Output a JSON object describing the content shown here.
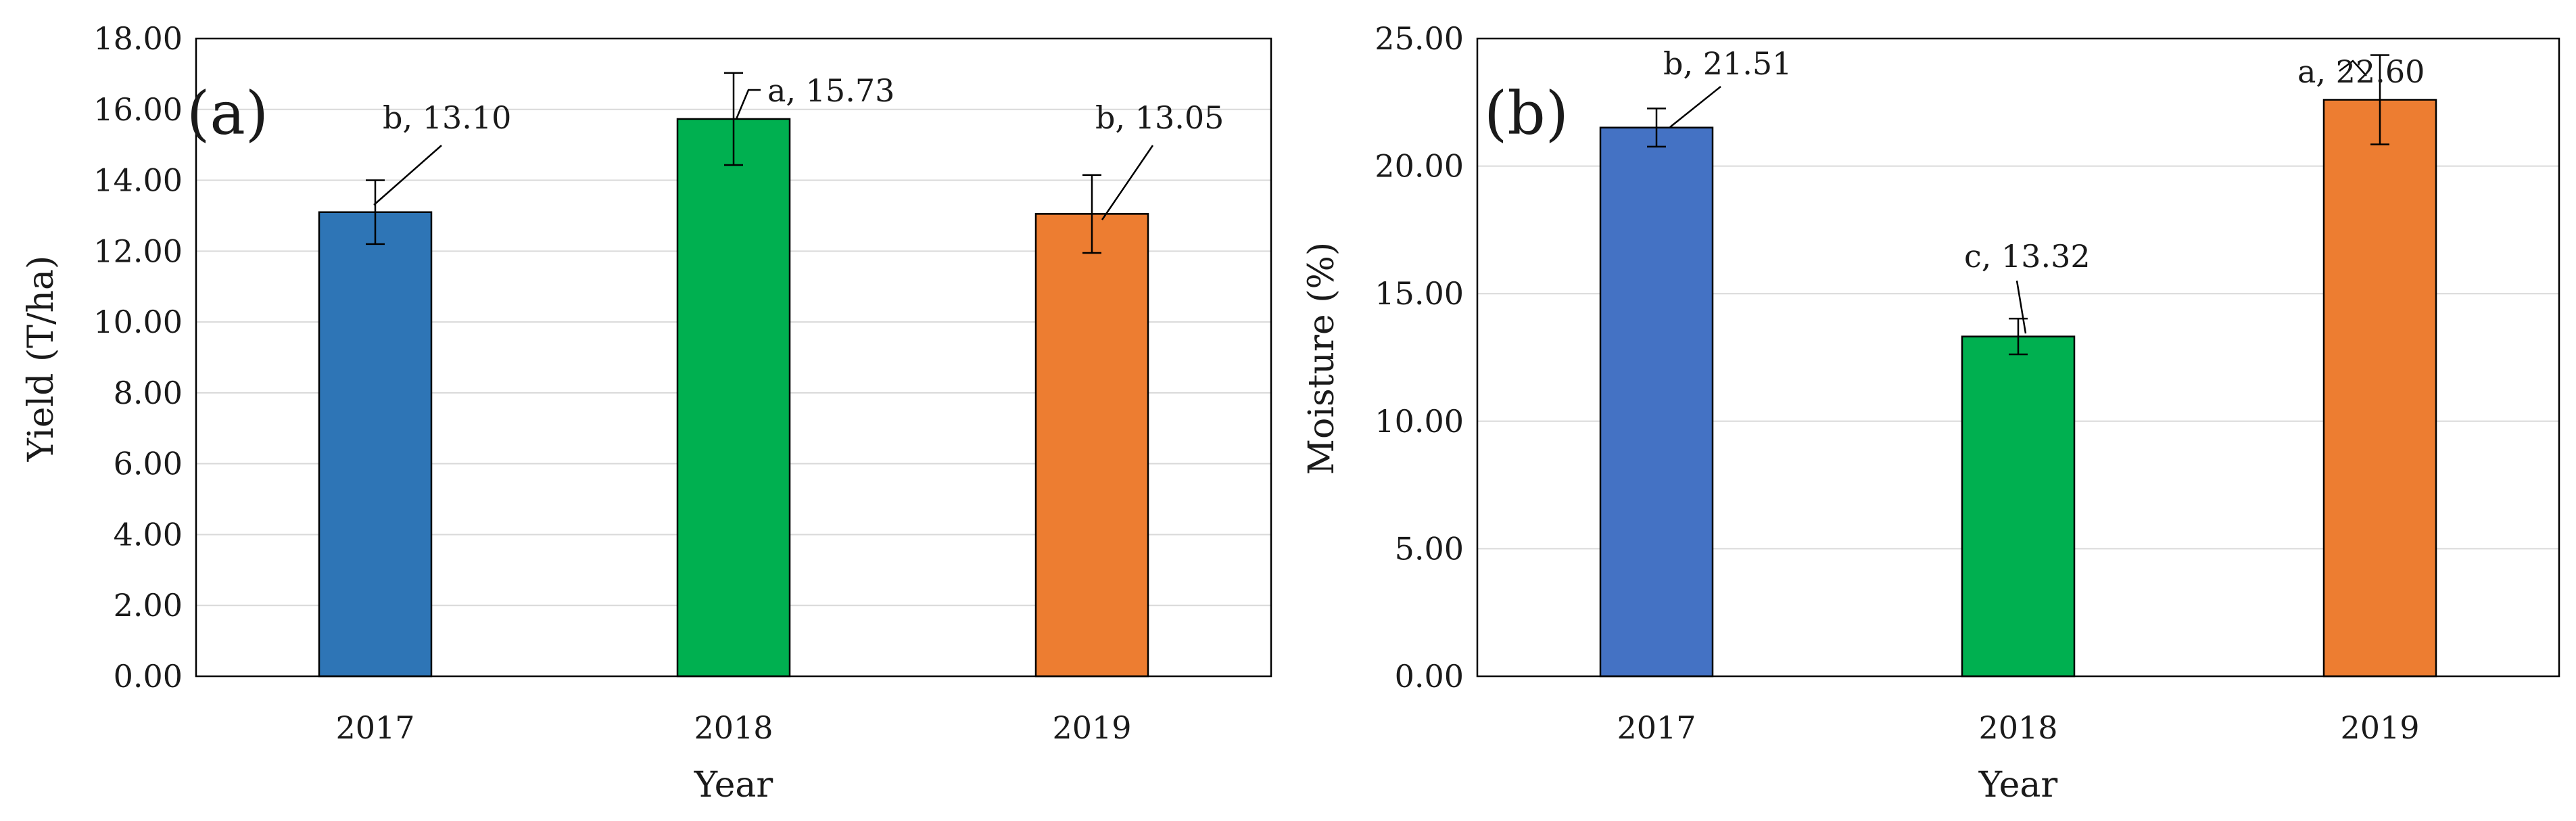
{
  "chart_data": [
    {
      "panel": "(a)",
      "type": "bar",
      "categories": [
        "2017",
        "2018",
        "2019"
      ],
      "values": [
        13.1,
        15.73,
        13.05
      ],
      "error": [
        0.9,
        1.3,
        1.1
      ],
      "data_labels": [
        "b, 13.10",
        "a, 15.73",
        "b, 13.05"
      ],
      "colors": [
        "#2e75b6",
        "#00b050",
        "#ed7d31"
      ],
      "xlabel": "Year",
      "ylabel": "Yield (T/ha)",
      "ylim": [
        0,
        18
      ],
      "yticks": [
        "0.00",
        "2.00",
        "4.00",
        "6.00",
        "8.00",
        "10.00",
        "12.00",
        "14.00",
        "16.00",
        "18.00"
      ],
      "grid": true
    },
    {
      "panel": "(b)",
      "type": "bar",
      "categories": [
        "2017",
        "2018",
        "2019"
      ],
      "values": [
        21.51,
        13.32,
        22.6
      ],
      "error": [
        0.75,
        0.7,
        1.75
      ],
      "data_labels": [
        "b, 21.51",
        "c, 13.32",
        "a, 22.60"
      ],
      "colors": [
        "#4472c4",
        "#00b050",
        "#ed7d31"
      ],
      "xlabel": "Year",
      "ylabel": "Moisture (%)",
      "ylim": [
        0,
        25
      ],
      "yticks": [
        "0.00",
        "5.00",
        "10.00",
        "15.00",
        "20.00",
        "25.00"
      ],
      "grid": true
    }
  ]
}
